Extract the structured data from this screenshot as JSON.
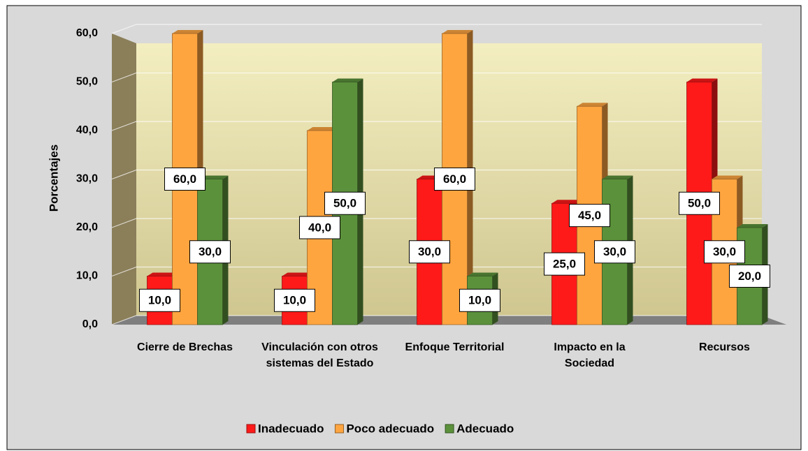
{
  "chart_data": {
    "type": "bar",
    "categories": [
      "Cierre de Brechas",
      "Vinculación con otros sistemas del Estado",
      "Enfoque Territorial",
      "Impacto en la Sociedad",
      "Recursos"
    ],
    "series": [
      {
        "name": "Inadecuado",
        "color": "#ff1a1a",
        "values": [
          10,
          10,
          30,
          25,
          50
        ],
        "value_labels": [
          "10,0",
          "10,0",
          "30,0",
          "25,0",
          "50,0"
        ]
      },
      {
        "name": "Poco adecuado",
        "color": "#ffa540",
        "values": [
          60,
          40,
          60,
          45,
          30
        ],
        "value_labels": [
          "60,0",
          "40,0",
          "60,0",
          "45,0",
          "30,0"
        ]
      },
      {
        "name": "Adecuado",
        "color": "#5b913b",
        "values": [
          30,
          50,
          10,
          30,
          20
        ],
        "value_labels": [
          "30,0",
          "50,0",
          "10,0",
          "30,0",
          "20,0"
        ]
      }
    ],
    "y_label": "Porcentajes",
    "ylim": [
      0,
      60
    ],
    "yticks": [
      {
        "value": 0,
        "label": "0,0"
      },
      {
        "value": 10,
        "label": "10,0"
      },
      {
        "value": 20,
        "label": "20,0"
      },
      {
        "value": 30,
        "label": "30,0"
      },
      {
        "value": 40,
        "label": "40,0"
      },
      {
        "value": 50,
        "label": "50,0"
      },
      {
        "value": 60,
        "label": "60,0"
      }
    ],
    "grid": true,
    "legend": "bottom"
  }
}
